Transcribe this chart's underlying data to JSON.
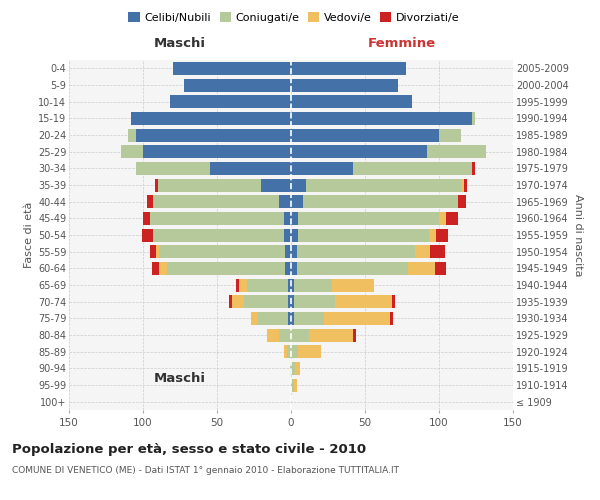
{
  "age_groups": [
    "100+",
    "95-99",
    "90-94",
    "85-89",
    "80-84",
    "75-79",
    "70-74",
    "65-69",
    "60-64",
    "55-59",
    "50-54",
    "45-49",
    "40-44",
    "35-39",
    "30-34",
    "25-29",
    "20-24",
    "15-19",
    "10-14",
    "5-9",
    "0-4"
  ],
  "birth_years": [
    "≤ 1909",
    "1910-1914",
    "1915-1919",
    "1920-1924",
    "1925-1929",
    "1930-1934",
    "1935-1939",
    "1940-1944",
    "1945-1949",
    "1950-1954",
    "1955-1959",
    "1960-1964",
    "1965-1969",
    "1970-1974",
    "1975-1979",
    "1980-1984",
    "1985-1989",
    "1990-1994",
    "1995-1999",
    "2000-2004",
    "2005-2009"
  ],
  "males": {
    "celibi": [
      0,
      0,
      0,
      0,
      0,
      2,
      2,
      2,
      4,
      4,
      5,
      5,
      8,
      20,
      55,
      100,
      105,
      108,
      82,
      72,
      80
    ],
    "coniugati": [
      0,
      0,
      1,
      3,
      8,
      20,
      30,
      28,
      80,
      85,
      88,
      90,
      85,
      70,
      50,
      15,
      5,
      0,
      0,
      0,
      0
    ],
    "vedovi": [
      0,
      0,
      0,
      2,
      8,
      5,
      8,
      5,
      5,
      2,
      0,
      0,
      0,
      0,
      0,
      0,
      0,
      0,
      0,
      0,
      0
    ],
    "divorziati": [
      0,
      0,
      0,
      0,
      0,
      0,
      2,
      2,
      5,
      4,
      8,
      5,
      4,
      2,
      0,
      0,
      0,
      0,
      0,
      0,
      0
    ]
  },
  "females": {
    "nubili": [
      0,
      0,
      0,
      0,
      0,
      2,
      2,
      2,
      4,
      4,
      5,
      5,
      8,
      10,
      42,
      92,
      100,
      122,
      82,
      72,
      78
    ],
    "coniugate": [
      0,
      2,
      3,
      5,
      12,
      20,
      28,
      26,
      75,
      80,
      88,
      95,
      105,
      105,
      80,
      40,
      15,
      2,
      0,
      0,
      0
    ],
    "vedove": [
      0,
      2,
      3,
      15,
      30,
      45,
      38,
      28,
      18,
      10,
      5,
      5,
      0,
      2,
      0,
      0,
      0,
      0,
      0,
      0,
      0
    ],
    "divorziate": [
      0,
      0,
      0,
      0,
      2,
      2,
      2,
      0,
      8,
      10,
      8,
      8,
      5,
      2,
      2,
      0,
      0,
      0,
      0,
      0,
      0
    ]
  },
  "colors": {
    "celibi_nubili": "#4472a8",
    "coniugati": "#b5c99a",
    "vedovi": "#f0c060",
    "divorziati": "#cc2222"
  },
  "title": "Popolazione per età, sesso e stato civile - 2010",
  "subtitle": "COMUNE DI VENETICO (ME) - Dati ISTAT 1° gennaio 2010 - Elaborazione TUTTITALIA.IT",
  "xlabel_left": "Maschi",
  "xlabel_right": "Femmine",
  "ylabel_left": "Fasce di età",
  "ylabel_right": "Anni di nascita",
  "xlim": 150,
  "bg_color": "#ffffff",
  "plot_bg": "#f5f5f5",
  "grid_color": "#cccccc",
  "legend_labels": [
    "Celibi/Nubili",
    "Coniugati/e",
    "Vedovi/e",
    "Divorziati/e"
  ]
}
